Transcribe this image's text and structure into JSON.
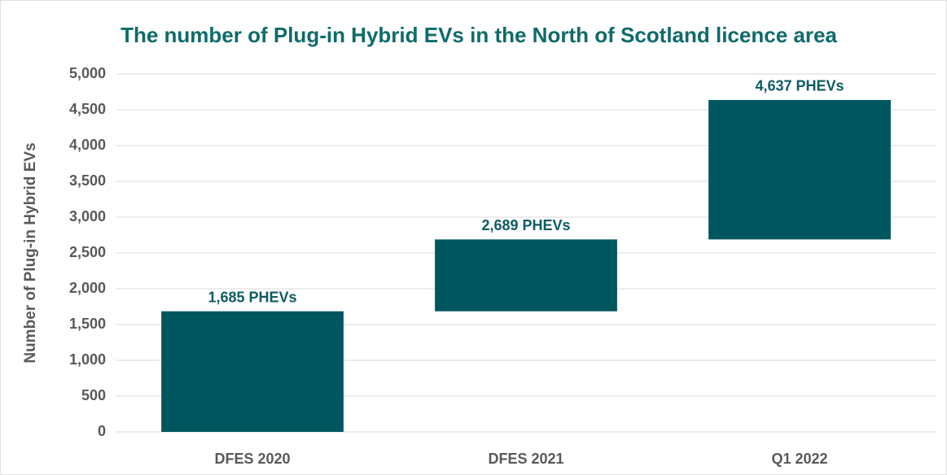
{
  "chart_data": {
    "type": "waterfall",
    "title": "The number of Plug-in Hybrid EVs in the North of Scotland licence area",
    "y_label": "Number of Plug-in Hybrid EVs",
    "categories": [
      "DFES 2020",
      "DFES 2021",
      "Q1 2022"
    ],
    "values": [
      1685,
      2689,
      4637
    ],
    "value_labels": [
      "1,685 PHEVs",
      "2,689 PHEVs",
      "4,637 PHEVs"
    ],
    "color": "#00565f",
    "ylim": [
      0,
      5000
    ],
    "yticks": [
      0,
      500,
      {
        "value": 1000,
        "label": "1,000"
      },
      {
        "value": 1500,
        "label": "1,500"
      },
      {
        "value": 2000,
        "label": "2,000"
      },
      {
        "value": 2500,
        "label": "2,500"
      },
      {
        "value": 3000,
        "label": "3,000"
      },
      {
        "value": 3500,
        "label": "3,500"
      },
      {
        "value": 4000,
        "label": "4,000"
      },
      {
        "value": 4500,
        "label": "4,500"
      },
      {
        "value": 5000,
        "label": "5,000"
      }
    ],
    "grid": true
  }
}
